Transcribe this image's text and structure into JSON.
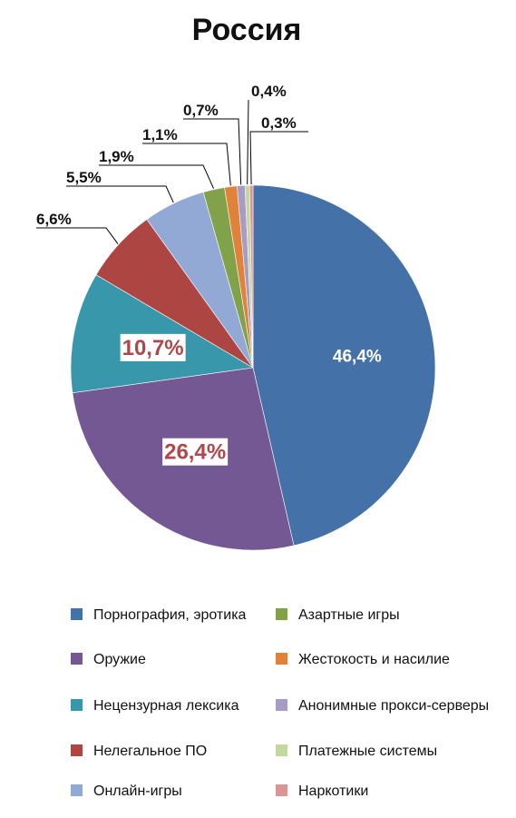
{
  "chart_data": {
    "type": "pie",
    "title": "Россия",
    "slices": [
      {
        "label": "Порнография, эротика",
        "value": 46.4,
        "value_label": "46,4%",
        "color": "#4472a8"
      },
      {
        "label": "Оружие",
        "value": 26.4,
        "value_label": "26,4%",
        "color": "#735893"
      },
      {
        "label": "Нецензурная лексика",
        "value": 10.7,
        "value_label": "10,7%",
        "color": "#3897ab"
      },
      {
        "label": "Нелегальное ПО",
        "value": 6.6,
        "value_label": "6,6%",
        "color": "#ad4642"
      },
      {
        "label": "Онлайн-игры",
        "value": 5.5,
        "value_label": "5,5%",
        "color": "#93a9d5"
      },
      {
        "label": "Азартные игры",
        "value": 1.9,
        "value_label": "1,9%",
        "color": "#82a24a"
      },
      {
        "label": "Жестокость и насилие",
        "value": 1.1,
        "value_label": "1,1%",
        "color": "#e0823a"
      },
      {
        "label": "Анонимные прокси-серверы",
        "value": 0.7,
        "value_label": "0,7%",
        "color": "#a89bc5"
      },
      {
        "label": "Платежные системы",
        "value": 0.4,
        "value_label": "0,4%",
        "color": "#c5d7a0"
      },
      {
        "label": "Наркотики",
        "value": 0.3,
        "value_label": "0,3%",
        "color": "#d99694"
      }
    ],
    "legend_order": [
      [
        "Порнография, эротика",
        "Азартные игры"
      ],
      [
        "Оружие",
        "Жестокость и насилие"
      ],
      [
        "Нецензурная лексика",
        "Анонимные прокси-серверы"
      ],
      [
        "Нелегальное ПО",
        "Платежные системы"
      ],
      [
        "Онлайн-игры",
        "Наркотики"
      ]
    ],
    "legend_placement": "bottom",
    "label_style": {
      "Порнография, эротика": "inside-white",
      "Оружие": "inside-boxed",
      "Нецензурная лексика": "inside-boxed",
      "Нелегальное ПО": "outside-leader",
      "Онлайн-игры": "outside-leader",
      "Азартные игры": "outside-leader",
      "Жестокость и насилие": "outside-leader",
      "Анонимные прокси-серверы": "outside-leader",
      "Платежные системы": "outside-leader",
      "Наркотики": "outside-leader"
    }
  }
}
